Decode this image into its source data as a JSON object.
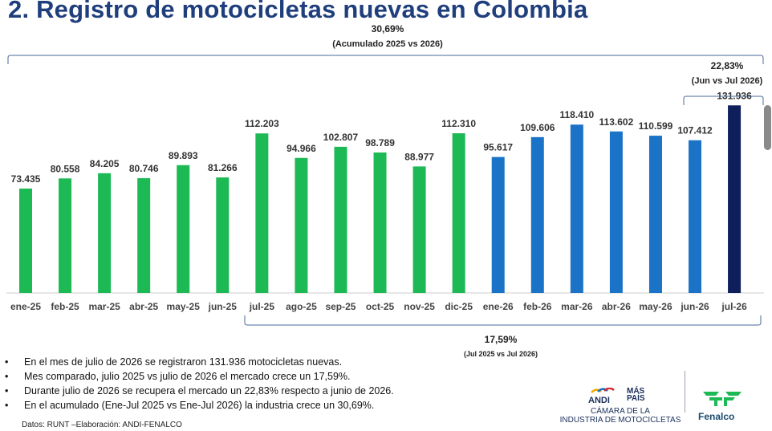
{
  "title": "2. Registro de motocicletas nuevas en Colombia",
  "chart_data": {
    "type": "bar",
    "categories": [
      "ene-25",
      "feb-25",
      "mar-25",
      "abr-25",
      "may-25",
      "jun-25",
      "jul-25",
      "ago-25",
      "sep-25",
      "oct-25",
      "nov-25",
      "dic-25",
      "ene-26",
      "feb-26",
      "mar-26",
      "abr-26",
      "may-26",
      "jun-26",
      "jul-26"
    ],
    "values": [
      73435,
      80558,
      84205,
      80746,
      89893,
      81266,
      112203,
      94966,
      102807,
      98789,
      88977,
      112310,
      95617,
      109606,
      118410,
      113602,
      110599,
      107412,
      131936
    ],
    "value_labels": [
      "73.435",
      "80.558",
      "84.205",
      "80.746",
      "89.893",
      "81.266",
      "112.203",
      "94.966",
      "102.807",
      "98.789",
      "88.977",
      "112.310",
      "95.617",
      "109.606",
      "118.410",
      "113.602",
      "110.599",
      "107.412",
      "131.936"
    ],
    "ylim": [
      0,
      140000
    ],
    "grid": false,
    "colors": {
      "year_2025": "#1db954",
      "year_2026": "#1a73c6",
      "highlight": "#0e1f5b",
      "bracket": "#4a6a9c"
    },
    "annotations": {
      "cumulative": {
        "value": "30,69%",
        "label": "(Acumulado 2025 vs 2026)"
      },
      "monthly": {
        "value": "22,83%",
        "label": "(Jun vs Jul 2026)"
      },
      "yearly": {
        "value": "17,59%",
        "label": "(Jul 2025 vs Jul 2026)"
      }
    }
  },
  "bullets": [
    "En el mes de julio de 2026 se registraron 131.936 motocicletas nuevas.",
    "Mes comparado, julio 2025 vs julio de 2026 el mercado crece un 17,59%.",
    "Durante julio de 2026 se recupera el mercado un 22,83% respecto a junio de 2026.",
    "En el acumulado (Ene-Jul 2025 vs Ene-Jul 2026) la industria crece un 30,69%."
  ],
  "bullet_marker": "•",
  "source": "Datos: RUNT –Elaboración: ANDI-FENALCO",
  "logos": {
    "andi": {
      "word": "ANDI",
      "mas": "MÁS",
      "pais": "PAÍS",
      "line1": "CÁMARA DE LA",
      "line2": "INDUSTRIA DE MOTOCICLETAS"
    },
    "fenalco": {
      "word": "Fenalco"
    }
  }
}
